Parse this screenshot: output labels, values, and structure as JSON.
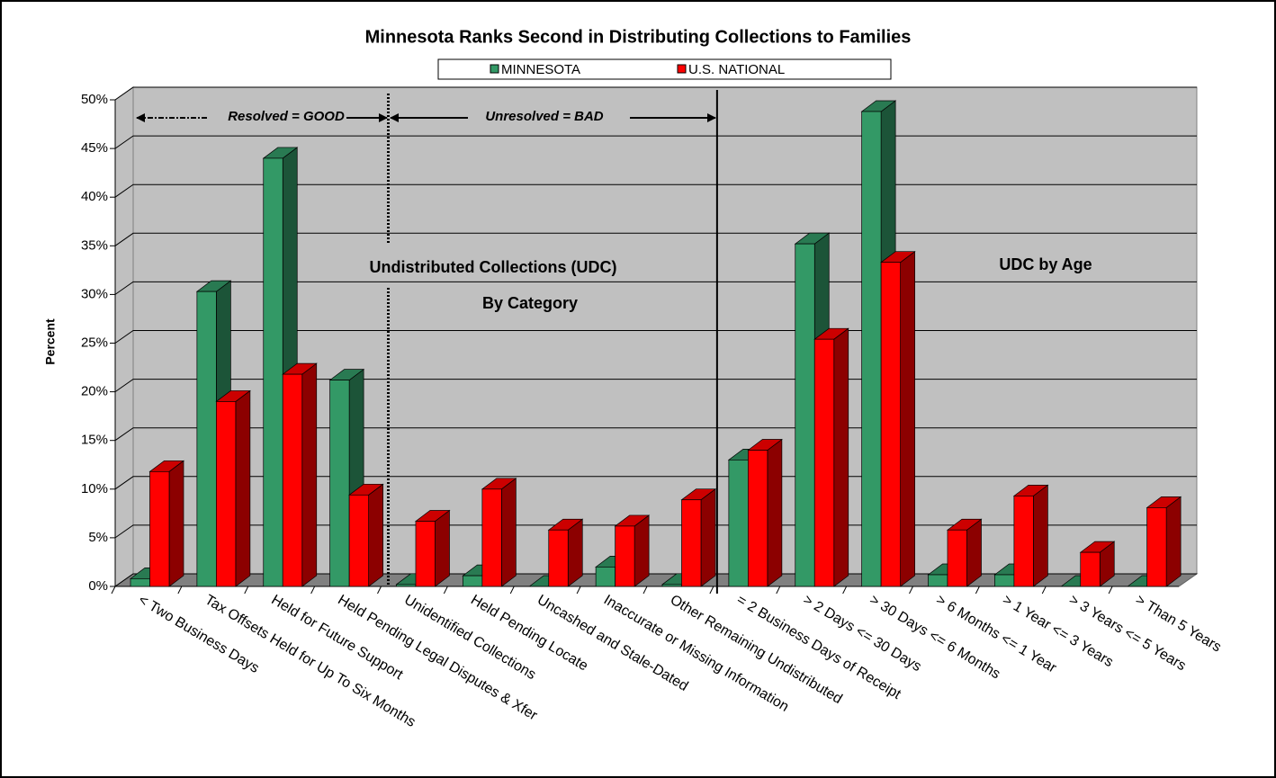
{
  "chart_data": {
    "type": "bar3d",
    "title": "Minnesota Ranks Second in Distributing Collections to Families",
    "y_label": "Percent",
    "annotations": [
      "Resolved = GOOD",
      "Unresolved = BAD",
      "Undistributed Collections (UDC)",
      "By Category",
      "UDC by Age"
    ],
    "categories": [
      "< Two Business Days",
      "Tax Offsets Held for Up To Six Months",
      "Held for Future Support",
      "Held Pending Legal Disputes & Xfer",
      "Unidentified Collections",
      "Held Pending Locate",
      "Uncashed and Stale-Dated",
      "Inaccurate or Missing Information",
      "Other Remaining Undistributed",
      "= 2 Business Days of Receipt",
      "> 2 Days <=  30 Days",
      "> 30 Days <= 6 Months",
      "> 6 Months <= 1 Year",
      "> 1 Year <= 3 Years",
      "> 3 Years <=  5 Years",
      "> Than 5 Years"
    ],
    "series": [
      {
        "name": "MINNESOTA",
        "color": "#339966",
        "values": [
          0.8,
          30.3,
          44,
          21.2,
          0.2,
          1.1,
          0,
          2,
          0.2,
          13,
          35.2,
          48.8,
          1.2,
          1.2,
          0,
          0
        ]
      },
      {
        "name": "U.S. NATIONAL",
        "color": "#ff0000",
        "values": [
          11.8,
          19,
          21.8,
          9.4,
          6.7,
          10,
          5.8,
          6.2,
          8.9,
          14,
          25.4,
          33.3,
          5.8,
          9.3,
          3.5,
          8.1
        ]
      }
    ],
    "ylim": [
      0,
      50
    ],
    "yticks": [
      {
        "value": 0,
        "label": "0%"
      },
      {
        "value": 5,
        "label": "5%"
      },
      {
        "value": 10,
        "label": "10%"
      },
      {
        "value": 15,
        "label": "15%"
      },
      {
        "value": 20,
        "label": "20%"
      },
      {
        "value": 25,
        "label": "25%"
      },
      {
        "value": 30,
        "label": "30%"
      },
      {
        "value": 35,
        "label": "35%"
      },
      {
        "value": 40,
        "label": "40%"
      },
      {
        "value": 45,
        "label": "45%"
      },
      {
        "value": 50,
        "label": "50%"
      }
    ],
    "grid": true
  }
}
